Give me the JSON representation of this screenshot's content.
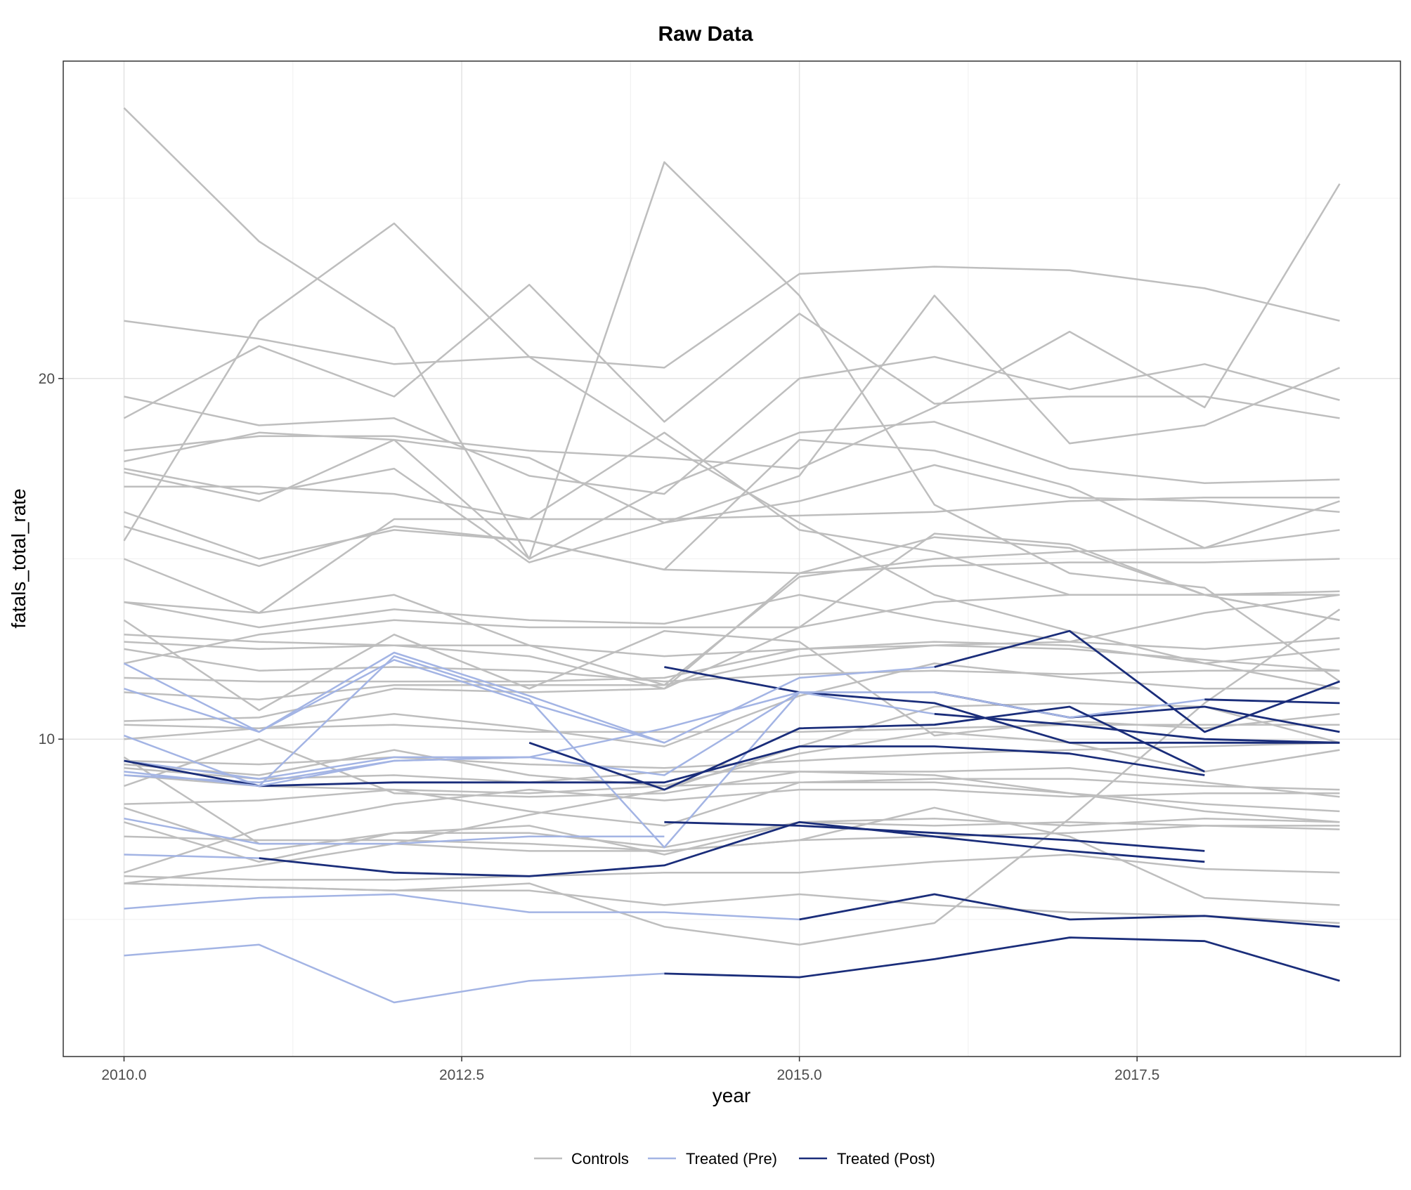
{
  "chart_data": {
    "type": "line",
    "title": "Raw Data",
    "xlabel": "year",
    "ylabel": "fatals_total_rate",
    "xlim": [
      2009.55,
      2019.45
    ],
    "ylim": [
      1.2,
      28.8
    ],
    "x_ticks": [
      2010.0,
      2012.5,
      2015.0,
      2017.5
    ],
    "x_tick_labels": [
      "2010.0",
      "2012.5",
      "2015.0",
      "2017.5"
    ],
    "y_ticks": [
      10,
      20
    ],
    "y_tick_labels": [
      "10",
      "20"
    ],
    "grid": true,
    "legend_position": "bottom",
    "legend": [
      {
        "label": "Controls",
        "color": "#bebebe"
      },
      {
        "label": "Treated (Pre)",
        "color": "#a3b4e4"
      },
      {
        "label": "Treated (Post)",
        "color": "#1a2d7a"
      }
    ],
    "x": [
      2010,
      2011,
      2012,
      2013,
      2014,
      2015,
      2016,
      2017,
      2018,
      2019
    ],
    "controls": [
      [
        27.5,
        23.8,
        21.4,
        15.0,
        26.0,
        22.3,
        16.5,
        14.6,
        14.2,
        11.6
      ],
      [
        15.5,
        21.6,
        24.3,
        20.6,
        18.2,
        16.0,
        14.0,
        13.0,
        12.1,
        11.4
      ],
      [
        21.6,
        21.1,
        20.4,
        20.6,
        20.3,
        22.9,
        23.1,
        23.0,
        22.5,
        21.6
      ],
      [
        18.9,
        20.9,
        19.5,
        22.6,
        18.8,
        21.8,
        19.3,
        19.5,
        19.5,
        18.9
      ],
      [
        19.5,
        18.7,
        18.9,
        17.3,
        16.8,
        20.0,
        20.6,
        19.7,
        20.4,
        19.4
      ],
      [
        18.0,
        18.4,
        18.4,
        18.0,
        17.8,
        17.5,
        19.2,
        21.3,
        19.2,
        25.4
      ],
      [
        17.7,
        18.5,
        18.3,
        15.0,
        17.0,
        18.5,
        18.8,
        17.5,
        17.1,
        17.2
      ],
      [
        17.5,
        16.8,
        17.5,
        14.9,
        16.0,
        17.3,
        22.3,
        18.2,
        18.7,
        20.3
      ],
      [
        17.4,
        16.6,
        18.3,
        17.8,
        16.0,
        16.6,
        17.6,
        16.7,
        16.6,
        16.3
      ],
      [
        17.0,
        17.0,
        16.8,
        16.1,
        18.5,
        15.8,
        15.2,
        14.0,
        14.0,
        14.0
      ],
      [
        16.3,
        15.0,
        15.8,
        15.5,
        14.7,
        14.6,
        14.8,
        14.9,
        14.9,
        15.0
      ],
      [
        15.9,
        14.8,
        15.9,
        15.5,
        14.7,
        18.3,
        18.0,
        17.0,
        15.3,
        15.8
      ],
      [
        15.0,
        13.5,
        16.1,
        16.1,
        16.1,
        16.2,
        16.3,
        16.6,
        16.7,
        16.7
      ],
      [
        13.8,
        13.5,
        14.0,
        12.6,
        11.5,
        14.5,
        15.0,
        15.2,
        15.3,
        16.6
      ],
      [
        13.8,
        13.1,
        13.6,
        13.3,
        13.2,
        14.0,
        13.3,
        12.7,
        13.5,
        14.0
      ],
      [
        13.3,
        10.8,
        12.9,
        11.4,
        13.0,
        12.7,
        10.1,
        10.5,
        10.3,
        10.7
      ],
      [
        12.9,
        12.7,
        12.6,
        12.3,
        11.4,
        14.6,
        15.6,
        15.3,
        14.0,
        13.3
      ],
      [
        12.7,
        12.5,
        12.6,
        12.6,
        12.3,
        12.5,
        12.6,
        12.5,
        12.2,
        11.9
      ],
      [
        12.5,
        11.9,
        12.0,
        11.9,
        11.6,
        11.8,
        11.9,
        11.8,
        11.9,
        11.9
      ],
      [
        12.1,
        12.9,
        13.3,
        13.1,
        13.1,
        13.1,
        13.8,
        14.0,
        14.0,
        14.1
      ],
      [
        11.7,
        11.6,
        11.6,
        11.6,
        11.7,
        12.5,
        12.7,
        12.6,
        12.1,
        12.5
      ],
      [
        11.3,
        11.1,
        11.5,
        11.5,
        11.5,
        12.3,
        12.6,
        12.7,
        12.5,
        12.8
      ],
      [
        10.5,
        10.6,
        11.4,
        11.3,
        11.4,
        13.1,
        15.7,
        15.4,
        14.0,
        13.3
      ],
      [
        10.4,
        10.3,
        10.4,
        10.2,
        10.2,
        10.2,
        10.3,
        10.4,
        10.4,
        10.4
      ],
      [
        10.0,
        10.3,
        10.7,
        10.3,
        9.8,
        11.2,
        12.1,
        11.7,
        11.4,
        11.4
      ],
      [
        9.5,
        7.1,
        7.1,
        7.9,
        8.6,
        9.8,
        10.9,
        11.0,
        10.9,
        9.9
      ],
      [
        9.4,
        9.3,
        9.5,
        9.3,
        9.2,
        9.4,
        9.6,
        9.7,
        9.8,
        9.9
      ],
      [
        9.3,
        9.0,
        9.7,
        9.0,
        8.7,
        9.6,
        10.2,
        9.9,
        9.1,
        9.7
      ],
      [
        9.2,
        8.9,
        9.0,
        8.8,
        9.1,
        9.1,
        9.1,
        9.2,
        8.8,
        8.4
      ],
      [
        9.0,
        8.7,
        8.6,
        8.5,
        8.7,
        8.8,
        8.9,
        8.9,
        8.7,
        8.6
      ],
      [
        8.7,
        10.0,
        8.5,
        8.4,
        8.5,
        9.1,
        9.0,
        8.5,
        8.2,
        8.0
      ],
      [
        8.2,
        8.3,
        8.6,
        8.0,
        7.6,
        8.8,
        8.8,
        8.5,
        8.0,
        7.7
      ],
      [
        8.1,
        6.9,
        7.4,
        7.4,
        7.0,
        7.7,
        7.8,
        7.6,
        7.8,
        7.7
      ],
      [
        7.7,
        6.6,
        7.4,
        7.6,
        6.8,
        7.7,
        7.6,
        7.7,
        7.6,
        7.5
      ],
      [
        7.3,
        7.2,
        7.2,
        7.1,
        6.9,
        7.2,
        7.3,
        7.4,
        7.6,
        7.6
      ],
      [
        6.3,
        7.5,
        8.2,
        8.6,
        8.3,
        8.6,
        8.6,
        8.4,
        8.5,
        8.5
      ],
      [
        6.0,
        6.5,
        7.1,
        6.9,
        6.9,
        7.2,
        8.1,
        7.3,
        5.6,
        5.4
      ],
      [
        6.2,
        6.1,
        6.1,
        6.2,
        6.3,
        6.3,
        6.6,
        6.8,
        6.4,
        6.3
      ],
      [
        6.0,
        5.9,
        5.8,
        5.8,
        5.4,
        5.7,
        5.4,
        5.2,
        5.1,
        4.9
      ],
      [
        6.0,
        5.9,
        5.8,
        6.0,
        4.8,
        4.3,
        4.9,
        7.8,
        11.0,
        13.6
      ]
    ],
    "treated": [
      {
        "pre": [
          12.1,
          10.2,
          12.4,
          11.2,
          9.9
        ],
        "post": [
          12.0,
          11.3,
          11.0,
          9.9,
          9.9,
          9.9
        ]
      },
      {
        "pre": [
          11.4,
          10.2,
          12.2,
          11.0,
          9.9,
          11.7,
          12.0
        ],
        "post": [
          12.0,
          13.0,
          10.2,
          11.6
        ]
      },
      {
        "pre": [
          10.1,
          8.7,
          12.3,
          11.1,
          7.0,
          11.3,
          11.3
        ],
        "post": [
          11.3,
          10.6,
          10.9,
          10.2
        ]
      },
      {
        "pre": [
          9.4,
          8.9,
          9.5,
          9.5,
          10.3,
          11.3,
          11.3,
          10.6,
          11.1
        ],
        "post": [
          11.1,
          11.0,
          9.2
        ]
      },
      {
        "pre": [
          9.0,
          8.8,
          9.4,
          9.5,
          9.0,
          11.3,
          10.7
        ],
        "post": [
          10.7,
          10.4,
          10.0,
          9.9
        ]
      },
      {
        "pre": [
          9.4
        ],
        "post": [
          9.4,
          8.7,
          8.8,
          8.8,
          8.8,
          9.8,
          9.8,
          9.6,
          9.0
        ]
      },
      {
        "pre": [
          9.1,
          8.7,
          9.4,
          9.5
        ],
        "post": [
          9.9,
          8.6,
          10.3,
          10.4,
          10.9,
          9.1
        ]
      },
      {
        "pre": [
          7.8,
          7.1,
          7.1,
          7.3,
          7.3
        ],
        "post": [
          7.7,
          7.6,
          7.4,
          7.2,
          6.9
        ]
      },
      {
        "pre": [
          6.8,
          6.7
        ],
        "post": [
          6.7,
          6.3,
          6.2,
          6.5,
          7.7,
          7.3,
          6.9,
          6.6
        ]
      },
      {
        "pre": [
          5.3,
          5.6,
          5.7,
          5.2,
          5.2,
          5.0
        ],
        "post": [
          5.0,
          5.7,
          5.0,
          5.1,
          4.8
        ]
      },
      {
        "pre": [
          4.0,
          4.3,
          2.7,
          3.3,
          3.5
        ],
        "post": [
          3.5,
          3.4,
          3.9,
          4.5,
          4.4,
          3.3
        ]
      }
    ]
  }
}
